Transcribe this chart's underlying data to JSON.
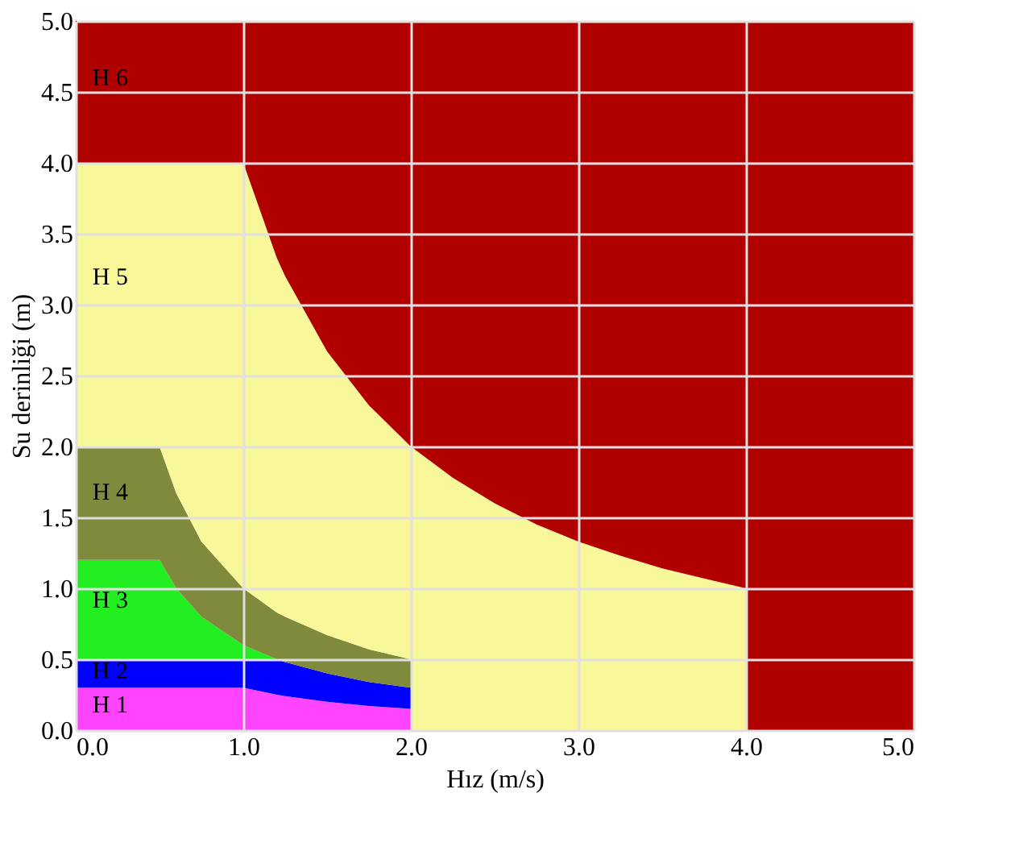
{
  "chart_data": {
    "type": "area",
    "stacked": true,
    "xlabel": "Hız (m/s)",
    "ylabel": "Su derinliği (m)",
    "x": [
      0,
      0.5,
      0.6,
      0.75,
      1,
      1.2,
      1.25,
      1.5,
      1.75,
      2,
      2,
      2.25,
      2.5,
      2.75,
      3,
      3.25,
      3.5,
      3.75,
      4,
      4,
      4.5,
      5
    ],
    "series": [
      {
        "name": "H 1",
        "color": "#ff44ff",
        "values": [
          0.3,
          0.3,
          0.3,
          0.3,
          0.3,
          0.25,
          0.24,
          0.2,
          0.17,
          0.15,
          0,
          0,
          0,
          0,
          0,
          0,
          0,
          0,
          0,
          0,
          0,
          0
        ]
      },
      {
        "name": "H 2",
        "color": "#0000ff",
        "values": [
          0.2,
          0.2,
          0.2,
          0.2,
          0.2,
          0.25,
          0.24,
          0.2,
          0.17,
          0.15,
          0,
          0,
          0,
          0,
          0,
          0,
          0,
          0,
          0,
          0,
          0,
          0
        ]
      },
      {
        "name": "H 3",
        "color": "#22ee22",
        "values": [
          0.7,
          0.7,
          0.5,
          0.3,
          0.1,
          0,
          0,
          0,
          0,
          0,
          0,
          0,
          0,
          0,
          0,
          0,
          0,
          0,
          0,
          0,
          0,
          0
        ]
      },
      {
        "name": "H 4",
        "color": "#808a3c",
        "values": [
          0.8,
          0.8,
          0.67,
          0.53,
          0.4,
          0.33,
          0.32,
          0.27,
          0.23,
          0.2,
          0,
          0,
          0,
          0,
          0,
          0,
          0,
          0,
          0,
          0,
          0,
          0
        ]
      },
      {
        "name": "H 5",
        "color": "#f8f89a",
        "values": [
          2,
          2,
          2.33,
          2.67,
          3,
          2.5,
          2.4,
          2,
          1.72,
          1.5,
          2,
          1.78,
          1.6,
          1.45,
          1.33,
          1.23,
          1.14,
          1.07,
          1,
          0,
          0,
          0
        ]
      },
      {
        "name": "H 6",
        "color": "#b00000",
        "values": [
          1,
          1,
          1,
          1,
          1,
          1.67,
          1.8,
          2.33,
          2.71,
          3,
          3,
          3.22,
          3.4,
          3.55,
          3.67,
          3.77,
          3.86,
          3.93,
          4,
          5,
          5,
          5
        ]
      }
    ],
    "xlim": [
      0,
      5
    ],
    "ylim": [
      0,
      5
    ],
    "xticks": [
      {
        "value": 0,
        "label": "0.0"
      },
      {
        "value": 1,
        "label": "1.0"
      },
      {
        "value": 2,
        "label": "2.0"
      },
      {
        "value": 3,
        "label": "3.0"
      },
      {
        "value": 4,
        "label": "4.0"
      },
      {
        "value": 5,
        "label": "5.0"
      }
    ],
    "yticks": [
      {
        "value": 0,
        "label": "0.0"
      },
      {
        "value": 0.5,
        "label": "0.5"
      },
      {
        "value": 1,
        "label": "1.0"
      },
      {
        "value": 1.5,
        "label": "1.5"
      },
      {
        "value": 2,
        "label": "2.0"
      },
      {
        "value": 2.5,
        "label": "2.5"
      },
      {
        "value": 3,
        "label": "3.0"
      },
      {
        "value": 3.5,
        "label": "3.5"
      },
      {
        "value": 4,
        "label": "4.0"
      },
      {
        "value": 4.5,
        "label": "4.5"
      },
      {
        "value": 5,
        "label": "5.0"
      }
    ],
    "grid": true
  }
}
